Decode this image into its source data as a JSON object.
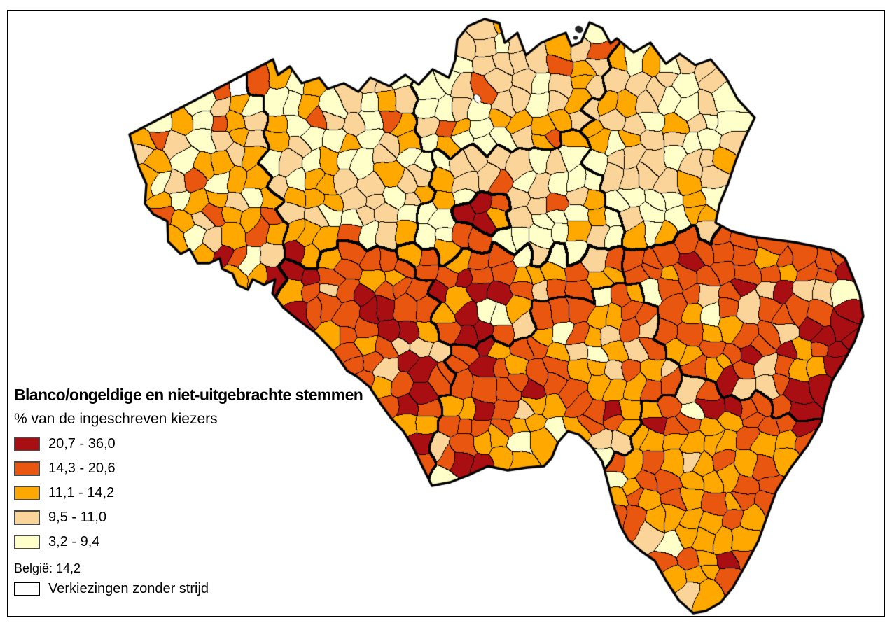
{
  "figure": {
    "title": "Blanco/ongeldige en niet-uitgebrachte stemmen",
    "subtitle": "% van de ingeschreven kiezers",
    "national_note": "België: 14,2",
    "no_contest_label": "Verkiezingen zonder strijd"
  },
  "chart_data": {
    "type": "choropleth_map",
    "region": "Belgium — municipalities (gemeenten)",
    "title": "Blanco/ongeldige en niet-uitgebrachte stemmen",
    "subtitle": "% van de ingeschreven kiezers",
    "unit": "% van de ingeschreven kiezers",
    "classes": [
      {
        "label": "20,7 - 36,0",
        "min": 20.7,
        "max": 36.0,
        "color": "#A80E12"
      },
      {
        "label": "14,3 - 20,6",
        "min": 14.3,
        "max": 20.6,
        "color": "#E8560F"
      },
      {
        "label": "11,1 - 14,2",
        "min": 11.1,
        "max": 14.2,
        "color": "#FFA800"
      },
      {
        "label": "9,5 - 11,0",
        "min": 9.5,
        "max": 11.0,
        "color": "#FBD49A"
      },
      {
        "label": "3,2 - 9,4",
        "min": 3.2,
        "max": 9.4,
        "color": "#FFFFC9"
      }
    ],
    "national_value": 14.2,
    "national_label": "België: 14,2",
    "special_class": {
      "label": "Verkiezingen zonder strijd",
      "color": "#FFFFFF"
    },
    "legend_position": "bottom-left",
    "border_color": "#000000",
    "background": "#FFFFFF",
    "visual_pattern": {
      "flanders_north": "mostly lowest classes (pale yellow / light orange), orange belt along the coast (West-Vlaanderen)",
      "wallonia_south": "mostly highest classes (orange-red), Luxembourg province predominantly orange",
      "dark_red_clusters": [
        "Brussels region",
        "Mouscron-Tournai (west Hainaut)",
        "Borinage/Charleroi belt",
        "Liège city",
        "eastern cantons (Eupen/Sankt-Vith)",
        "far south (Aubange area)"
      ],
      "white_no_contest": "single municipality near the North Sea coast"
    }
  }
}
